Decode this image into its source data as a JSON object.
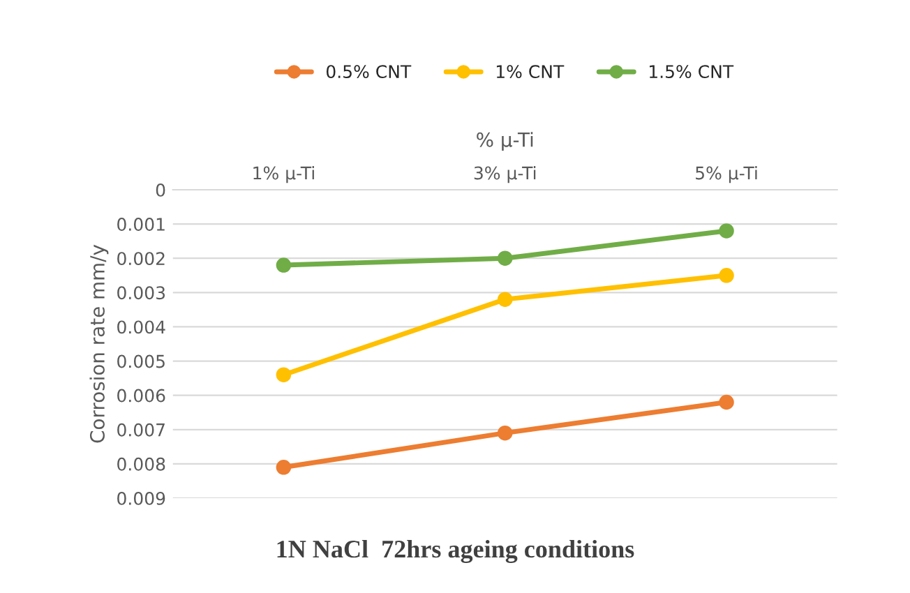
{
  "chart_data": {
    "type": "line",
    "title": "1N NaCl  72hrs ageing conditions",
    "xlabel": "% μ-Ti",
    "ylabel": "Corrosion rate mm/y",
    "categories": [
      "1% μ-Ti",
      "3% μ-Ti",
      "5% μ-Ti"
    ],
    "series": [
      {
        "name": "0.5% CNT",
        "color": "#ed7d31",
        "values": [
          0.0081,
          0.0071,
          0.0062
        ]
      },
      {
        "name": "1% CNT",
        "color": "#ffc000",
        "values": [
          0.0054,
          0.0032,
          0.0025
        ]
      },
      {
        "name": "1.5% CNT",
        "color": "#70ad47",
        "values": [
          0.0022,
          0.002,
          0.0012
        ]
      }
    ],
    "ylim": [
      0.009,
      0
    ],
    "yticks": [
      {
        "value": 0,
        "label": "0"
      },
      {
        "value": 0.001,
        "label": "0.001"
      },
      {
        "value": 0.002,
        "label": "0.002"
      },
      {
        "value": 0.003,
        "label": "0.003"
      },
      {
        "value": 0.004,
        "label": "0.004"
      },
      {
        "value": 0.005,
        "label": "0.005"
      },
      {
        "value": 0.006,
        "label": "0.006"
      },
      {
        "value": 0.007,
        "label": "0.007"
      },
      {
        "value": 0.008,
        "label": "0.008"
      },
      {
        "value": 0.009,
        "label": "0.009"
      }
    ],
    "grid": "y",
    "legend": "top",
    "marker": "circle",
    "line_style": "solid"
  }
}
